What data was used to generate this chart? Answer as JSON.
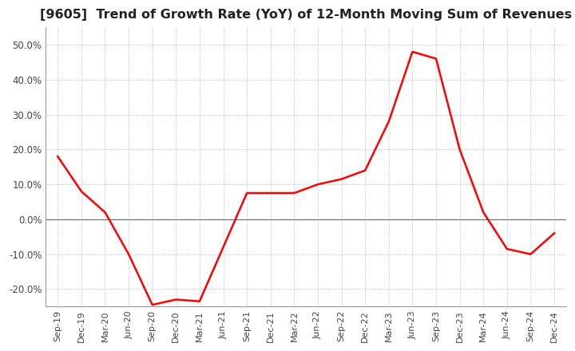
{
  "title": "[9605]  Trend of Growth Rate (YoY) of 12-Month Moving Sum of Revenues",
  "title_fontsize": 11.5,
  "line_color": "#ff0000",
  "background_color": "#ffffff",
  "plot_bg_color": "#ffffff",
  "grid_color": "#aaaaaa",
  "zero_line_color": "#666666",
  "ylim": [
    -0.25,
    0.55
  ],
  "yticks": [
    -0.2,
    -0.1,
    0.0,
    0.1,
    0.2,
    0.3,
    0.4,
    0.5
  ],
  "x_labels": [
    "Sep-19",
    "Dec-19",
    "Mar-20",
    "Jun-20",
    "Sep-20",
    "Dec-20",
    "Mar-21",
    "Jun-21",
    "Sep-21",
    "Dec-21",
    "Mar-22",
    "Jun-22",
    "Sep-22",
    "Dec-22",
    "Mar-23",
    "Jun-23",
    "Sep-23",
    "Dec-23",
    "Mar-24",
    "Jun-24",
    "Sep-24",
    "Dec-24"
  ],
  "data_x": [
    0,
    1,
    2,
    3,
    4,
    5,
    6,
    7,
    8,
    9,
    10,
    11,
    12,
    13,
    14,
    15,
    16,
    17,
    18,
    19,
    20,
    21
  ],
  "data_y": [
    0.18,
    0.08,
    0.02,
    -0.1,
    -0.245,
    -0.23,
    -0.235,
    -0.08,
    0.075,
    0.075,
    0.075,
    0.1,
    0.115,
    0.14,
    0.28,
    0.48,
    0.46,
    0.2,
    0.02,
    -0.085,
    -0.1,
    -0.04
  ]
}
